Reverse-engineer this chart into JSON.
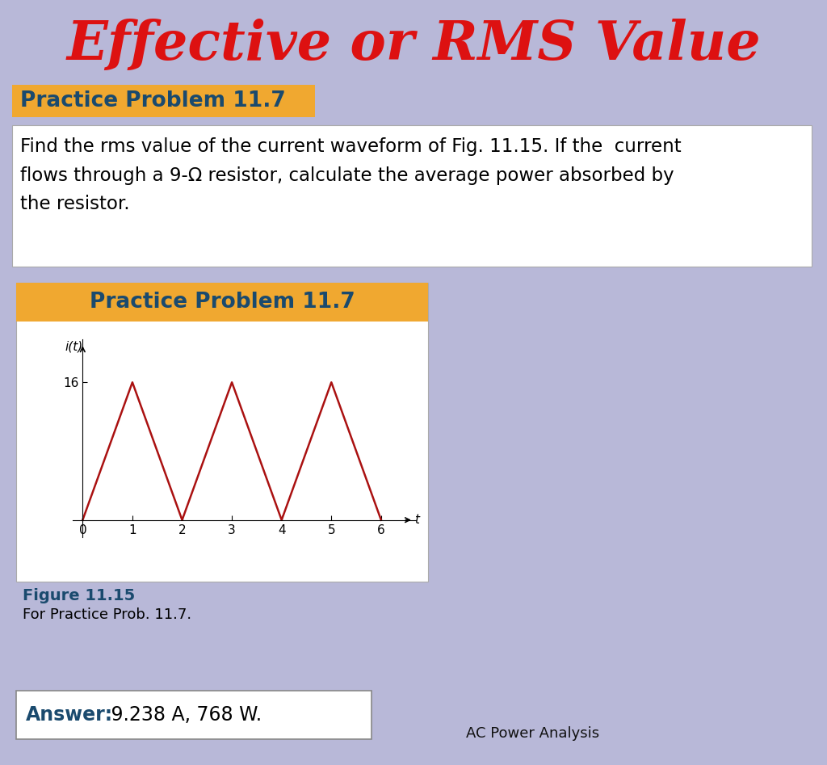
{
  "title": "Effective or RMS Value",
  "title_color": "#dd1111",
  "title_fontsize": 48,
  "bg_color": "#b8b8d8",
  "practice_label": "Practice Problem 11.7",
  "practice_label_bg": "#f0a830",
  "practice_label_color": "#1a4a6e",
  "problem_text_line1": "Find the rms value of the current waveform of Fig. 11.15. If the  current",
  "problem_text_line2": "flows through a 9-Ω resistor, calculate the average power absorbed by",
  "problem_text_line3": "the resistor.",
  "problem_box_bg": "#ffffff",
  "figure_title": "Practice Problem 11.7",
  "figure_title_bg": "#f0a830",
  "figure_title_color": "#1a4a6e",
  "figure_bg": "#ffffff",
  "waveform_color": "#aa1111",
  "waveform_x": [
    0,
    1,
    2,
    3,
    4,
    5,
    6
  ],
  "waveform_y": [
    0,
    16,
    0,
    16,
    0,
    16,
    0
  ],
  "xlabel": "t",
  "ylabel": "i(t)",
  "xticks": [
    0,
    1,
    2,
    3,
    4,
    5,
    6
  ],
  "ytick_val": 16,
  "figure_label": "Figure 11.15",
  "figure_label_color": "#1a4a6e",
  "figure_caption": "For Practice Prob. 11.7.",
  "answer_text": "Answer:",
  "answer_value": " 9.238 A, 768 W.",
  "answer_box_bg": "#ffffff",
  "answer_box_border": "#888888",
  "footer_text": "AC Power Analysis",
  "footer_color": "#111111"
}
